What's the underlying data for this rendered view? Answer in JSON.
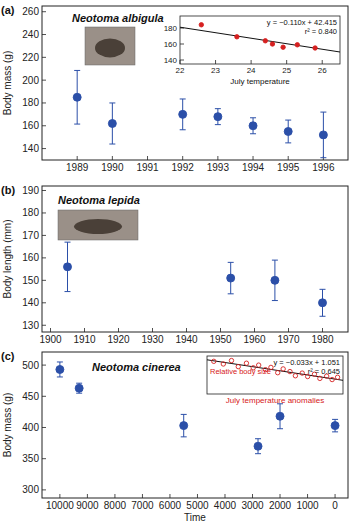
{
  "chart_data": [
    {
      "type": "scatter",
      "panel_label": "(a)",
      "title": "Neotoma albigula",
      "y_label": "Body mass (g)",
      "x": [
        1989,
        1990,
        1992,
        1993,
        1994,
        1995,
        1996
      ],
      "values": [
        185,
        162,
        170,
        168,
        160,
        155,
        152
      ],
      "errors": [
        23.5,
        18,
        13.5,
        7,
        7,
        10,
        20
      ],
      "color": "#2b4fa8",
      "marker": "circle",
      "xlim": [
        1988,
        1996.7
      ],
      "xticks": [
        1989,
        1990,
        1991,
        1992,
        1993,
        1994,
        1995,
        1996
      ],
      "ylim": [
        130,
        265
      ],
      "yticks": [
        140,
        160,
        180,
        200,
        220,
        240,
        260
      ]
    },
    {
      "type": "scatter",
      "x_label": "July temperature",
      "x": [
        22.6,
        23.6,
        24.4,
        24.6,
        24.9,
        25.3,
        25.8
      ],
      "values": [
        184,
        169,
        164,
        160,
        156,
        159,
        155
      ],
      "color": "#d62020",
      "marker": "circle",
      "trend": {
        "x": [
          22,
          26.5
        ],
        "values": [
          181,
          150
        ]
      },
      "annotations": [
        "y = −0.110x + 42.415",
        "r² = 0.840"
      ],
      "xlim": [
        22,
        26.5
      ],
      "xticks": [
        22,
        23,
        24,
        25,
        26
      ],
      "ylim": [
        135,
        195
      ],
      "yticks": [
        140,
        160,
        180
      ]
    },
    {
      "type": "scatter",
      "panel_label": "(b)",
      "title": "Neotoma lepida",
      "y_label": "Body length (mm)",
      "x": [
        1905,
        1953,
        1966,
        1980
      ],
      "values": [
        156,
        151,
        150,
        140
      ],
      "errors": [
        11,
        7,
        9,
        6
      ],
      "color": "#2b4fa8",
      "marker": "circle",
      "xlim": [
        1897.5,
        1987.5
      ],
      "xticks": [
        1900,
        1910,
        1920,
        1930,
        1940,
        1950,
        1960,
        1970,
        1980
      ],
      "ylim": [
        127,
        192
      ],
      "yticks": [
        130,
        140,
        150,
        160,
        170,
        180,
        190
      ]
    },
    {
      "type": "scatter",
      "panel_label": "(c)",
      "title": "Neotoma cinerea",
      "y_label": "Body mass (g)",
      "x_label": "Time",
      "x": [
        10000,
        9300,
        5500,
        2800,
        2000,
        0
      ],
      "values": [
        493,
        463,
        403,
        370,
        418,
        403
      ],
      "errors": [
        12,
        8,
        18,
        12,
        20,
        10
      ],
      "color": "#2b4fa8",
      "marker": "circle",
      "xlim": [
        10650,
        -470
      ],
      "xticks": [
        10000,
        9000,
        8000,
        7000,
        6000,
        5000,
        4000,
        3000,
        2000,
        1000,
        0
      ],
      "ylim": [
        287,
        521
      ],
      "yticks": [
        300,
        350,
        400,
        450,
        500
      ]
    },
    {
      "type": "scatter",
      "y_label": "Relative body size",
      "x_label": "July temperature anomalies",
      "x": [
        0.5,
        1.2,
        1.8,
        2.3,
        2.9,
        3.4,
        3.8,
        4.3,
        4.7,
        5.2,
        5.6,
        6.1,
        6.5,
        7.0,
        7.4,
        7.9,
        8.3,
        8.8,
        9.2,
        9.6
      ],
      "values": [
        8.6,
        7.9,
        8.8,
        7.2,
        8.1,
        6.9,
        7.6,
        6.4,
        7.0,
        5.6,
        6.6,
        5.9,
        4.8,
        5.5,
        4.6,
        5.2,
        4.1,
        4.7,
        3.8,
        4.4
      ],
      "color": "#d62020",
      "marker": "open_circle",
      "trend": {
        "x": [
          0,
          10
        ],
        "values": [
          9.0,
          3.6
        ]
      },
      "annotations": [
        "y = −0.033x + 1.051",
        "r² = 0.645"
      ],
      "tick_labels": false,
      "xlim": [
        0,
        10
      ],
      "xticks": [],
      "ylim": [
        0,
        10
      ],
      "yticks": []
    }
  ]
}
